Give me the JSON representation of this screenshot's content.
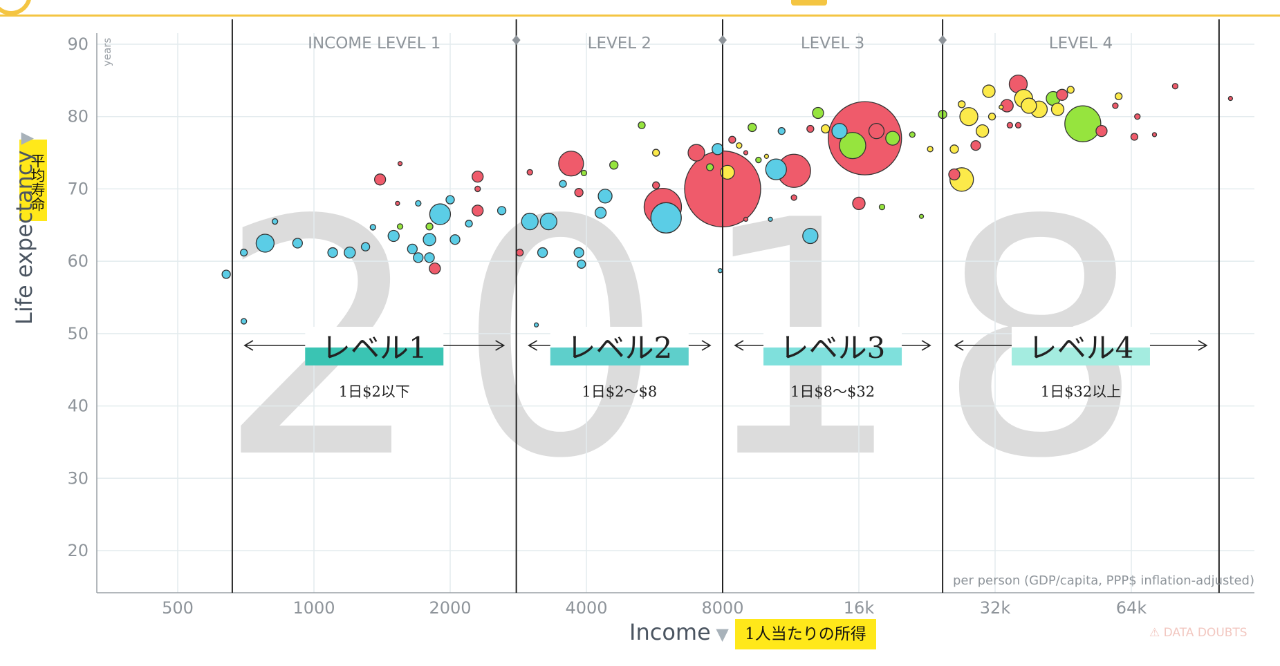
{
  "chart_data": {
    "type": "scatter",
    "year": "2018",
    "xlabel": "Income",
    "xlabel_jp": "1人当たりの所得",
    "ylabel": "Life expectancy",
    "ylabel_jp": "平均寿命",
    "y_unit": "years",
    "x_note": "per person (GDP/capita, PPP$ inflation-adjusted)",
    "xscale": "log2",
    "xlim": [
      350,
      110000
    ],
    "ylim": [
      15,
      92
    ],
    "x_ticks": [
      {
        "value": 500,
        "label": "500"
      },
      {
        "value": 1000,
        "label": "1000"
      },
      {
        "value": 2000,
        "label": "2000"
      },
      {
        "value": 4000,
        "label": "4000"
      },
      {
        "value": 8000,
        "label": "8000"
      },
      {
        "value": 16000,
        "label": "16k"
      },
      {
        "value": 32000,
        "label": "32k"
      },
      {
        "value": 64000,
        "label": "64k"
      }
    ],
    "y_ticks": [
      20,
      30,
      40,
      50,
      60,
      70,
      80,
      90
    ],
    "grid": true,
    "colors": {
      "red": "#ef5b6b",
      "blue": "#5bcde6",
      "green": "#96e43e",
      "yellow": "#fcea4a"
    },
    "level_boundaries": [
      660,
      2800,
      8000,
      24500,
      100000
    ],
    "levels": [
      {
        "header": "INCOME LEVEL 1",
        "jp": "レベル1",
        "sub": "1日$2以下",
        "color": "#3ac4b3",
        "from": 660,
        "to": 2800
      },
      {
        "header": "LEVEL 2",
        "jp": "レベル2",
        "sub": "1日$2〜$8",
        "color": "#5ecfcb",
        "from": 2800,
        "to": 8000
      },
      {
        "header": "LEVEL 3",
        "jp": "レベル3",
        "sub": "1日$8〜$32",
        "color": "#7fe0dc",
        "from": 8000,
        "to": 24500
      },
      {
        "header": "LEVEL 4",
        "jp": "レベル4",
        "sub": "1日$32以上",
        "color": "#a4ece0",
        "from": 24500,
        "to": 100000
      }
    ],
    "bubbles": [
      {
        "x": 8000,
        "y": 70,
        "r": 55,
        "color": "red"
      },
      {
        "x": 16500,
        "y": 77,
        "r": 53,
        "color": "red"
      },
      {
        "x": 5900,
        "y": 67.5,
        "r": 27,
        "color": "red"
      },
      {
        "x": 50000,
        "y": 79,
        "r": 26,
        "color": "green"
      },
      {
        "x": 6000,
        "y": 66,
        "r": 22,
        "color": "blue"
      },
      {
        "x": 11500,
        "y": 72.5,
        "r": 24,
        "color": "red"
      },
      {
        "x": 15500,
        "y": 76,
        "r": 19,
        "color": "green"
      },
      {
        "x": 3700,
        "y": 73.5,
        "r": 18,
        "color": "red"
      },
      {
        "x": 27000,
        "y": 71.3,
        "r": 17,
        "color": "yellow"
      },
      {
        "x": 1900,
        "y": 66.5,
        "r": 15,
        "color": "blue"
      },
      {
        "x": 780,
        "y": 62.5,
        "r": 13,
        "color": "blue"
      },
      {
        "x": 10500,
        "y": 72.7,
        "r": 15,
        "color": "blue"
      },
      {
        "x": 28000,
        "y": 80,
        "r": 13,
        "color": "yellow"
      },
      {
        "x": 36000,
        "y": 84.5,
        "r": 13,
        "color": "red"
      },
      {
        "x": 37000,
        "y": 82.5,
        "r": 13,
        "color": "yellow"
      },
      {
        "x": 31000,
        "y": 83.5,
        "r": 9,
        "color": "yellow"
      },
      {
        "x": 38000,
        "y": 81.5,
        "r": 11,
        "color": "yellow"
      },
      {
        "x": 34000,
        "y": 81.5,
        "r": 9,
        "color": "red"
      },
      {
        "x": 3300,
        "y": 65.5,
        "r": 12,
        "color": "blue"
      },
      {
        "x": 3000,
        "y": 65.5,
        "r": 12,
        "color": "blue"
      },
      {
        "x": 12500,
        "y": 63.5,
        "r": 11,
        "color": "blue"
      },
      {
        "x": 14500,
        "y": 78,
        "r": 11,
        "color": "blue"
      },
      {
        "x": 17500,
        "y": 78,
        "r": 11,
        "color": "red"
      },
      {
        "x": 8200,
        "y": 72.3,
        "r": 10,
        "color": "yellow"
      },
      {
        "x": 19000,
        "y": 77,
        "r": 10,
        "color": "green"
      },
      {
        "x": 4400,
        "y": 69,
        "r": 10,
        "color": "blue"
      },
      {
        "x": 4300,
        "y": 66.7,
        "r": 8,
        "color": "blue"
      },
      {
        "x": 7000,
        "y": 75,
        "r": 12,
        "color": "red"
      },
      {
        "x": 7800,
        "y": 75.5,
        "r": 8,
        "color": "blue"
      },
      {
        "x": 16000,
        "y": 68,
        "r": 9,
        "color": "red"
      },
      {
        "x": 26000,
        "y": 72,
        "r": 8,
        "color": "red"
      },
      {
        "x": 40000,
        "y": 81,
        "r": 12,
        "color": "yellow"
      },
      {
        "x": 43000,
        "y": 82.5,
        "r": 10,
        "color": "green"
      },
      {
        "x": 44000,
        "y": 81,
        "r": 9,
        "color": "yellow"
      },
      {
        "x": 45000,
        "y": 83,
        "r": 8,
        "color": "red"
      },
      {
        "x": 30000,
        "y": 78,
        "r": 9,
        "color": "yellow"
      },
      {
        "x": 29000,
        "y": 76,
        "r": 7,
        "color": "red"
      },
      {
        "x": 55000,
        "y": 78,
        "r": 8,
        "color": "red"
      },
      {
        "x": 1650,
        "y": 61.7,
        "r": 7,
        "color": "blue"
      },
      {
        "x": 1700,
        "y": 60.5,
        "r": 7,
        "color": "blue"
      },
      {
        "x": 1800,
        "y": 63,
        "r": 9,
        "color": "blue"
      },
      {
        "x": 1800,
        "y": 60.5,
        "r": 7,
        "color": "blue"
      },
      {
        "x": 1850,
        "y": 59,
        "r": 8,
        "color": "red"
      },
      {
        "x": 2050,
        "y": 63,
        "r": 7,
        "color": "blue"
      },
      {
        "x": 2300,
        "y": 71.7,
        "r": 8,
        "color": "red"
      },
      {
        "x": 2300,
        "y": 67,
        "r": 8,
        "color": "red"
      },
      {
        "x": 2600,
        "y": 67,
        "r": 6,
        "color": "blue"
      },
      {
        "x": 2000,
        "y": 68.5,
        "r": 6,
        "color": "blue"
      },
      {
        "x": 1500,
        "y": 63.5,
        "r": 8,
        "color": "blue"
      },
      {
        "x": 1400,
        "y": 71.3,
        "r": 8,
        "color": "red"
      },
      {
        "x": 1300,
        "y": 62,
        "r": 6,
        "color": "blue"
      },
      {
        "x": 1200,
        "y": 61.2,
        "r": 8,
        "color": "blue"
      },
      {
        "x": 1100,
        "y": 61.2,
        "r": 7,
        "color": "blue"
      },
      {
        "x": 920,
        "y": 62.5,
        "r": 7,
        "color": "blue"
      },
      {
        "x": 640,
        "y": 58.2,
        "r": 6,
        "color": "blue"
      },
      {
        "x": 700,
        "y": 61.2,
        "r": 5,
        "color": "blue"
      },
      {
        "x": 3200,
        "y": 61.2,
        "r": 7,
        "color": "blue"
      },
      {
        "x": 3850,
        "y": 61.2,
        "r": 7,
        "color": "blue"
      },
      {
        "x": 3900,
        "y": 59.6,
        "r": 6,
        "color": "blue"
      },
      {
        "x": 2850,
        "y": 61.2,
        "r": 5,
        "color": "red"
      },
      {
        "x": 3850,
        "y": 69.5,
        "r": 6,
        "color": "red"
      },
      {
        "x": 5700,
        "y": 70.5,
        "r": 5,
        "color": "red"
      },
      {
        "x": 5700,
        "y": 75,
        "r": 5,
        "color": "yellow"
      },
      {
        "x": 7500,
        "y": 73,
        "r": 5,
        "color": "green"
      },
      {
        "x": 9300,
        "y": 78.5,
        "r": 6,
        "color": "green"
      },
      {
        "x": 13000,
        "y": 80.5,
        "r": 8,
        "color": "green"
      },
      {
        "x": 13500,
        "y": 78.3,
        "r": 6,
        "color": "yellow"
      },
      {
        "x": 12500,
        "y": 78.3,
        "r": 5,
        "color": "red"
      },
      {
        "x": 10800,
        "y": 78,
        "r": 5,
        "color": "blue"
      },
      {
        "x": 21000,
        "y": 77.5,
        "r": 4,
        "color": "green"
      },
      {
        "x": 24500,
        "y": 80.3,
        "r": 6,
        "color": "green"
      },
      {
        "x": 26000,
        "y": 75.5,
        "r": 6,
        "color": "yellow"
      },
      {
        "x": 31500,
        "y": 80,
        "r": 5,
        "color": "yellow"
      },
      {
        "x": 34500,
        "y": 78.8,
        "r": 4,
        "color": "red"
      },
      {
        "x": 47000,
        "y": 83.7,
        "r": 5,
        "color": "yellow"
      },
      {
        "x": 60000,
        "y": 82.8,
        "r": 5,
        "color": "yellow"
      },
      {
        "x": 80000,
        "y": 84.2,
        "r": 4,
        "color": "red"
      },
      {
        "x": 65000,
        "y": 77.2,
        "r": 5,
        "color": "red"
      },
      {
        "x": 8400,
        "y": 76.8,
        "r": 5,
        "color": "red"
      },
      {
        "x": 8700,
        "y": 76,
        "r": 4,
        "color": "yellow"
      },
      {
        "x": 5300,
        "y": 78.8,
        "r": 5,
        "color": "green"
      },
      {
        "x": 3550,
        "y": 70.7,
        "r": 5,
        "color": "blue"
      },
      {
        "x": 3000,
        "y": 72.3,
        "r": 4,
        "color": "red"
      },
      {
        "x": 1550,
        "y": 64.8,
        "r": 4,
        "color": "green"
      },
      {
        "x": 1800,
        "y": 64.8,
        "r": 5,
        "color": "green"
      },
      {
        "x": 1350,
        "y": 64.7,
        "r": 4,
        "color": "blue"
      },
      {
        "x": 1700,
        "y": 68,
        "r": 4,
        "color": "blue"
      },
      {
        "x": 2200,
        "y": 65.2,
        "r": 5,
        "color": "blue"
      },
      {
        "x": 2300,
        "y": 70,
        "r": 4,
        "color": "red"
      },
      {
        "x": 3100,
        "y": 51.2,
        "r": 3,
        "color": "blue"
      },
      {
        "x": 700,
        "y": 51.7,
        "r": 4,
        "color": "blue"
      },
      {
        "x": 820,
        "y": 65.5,
        "r": 4,
        "color": "blue"
      },
      {
        "x": 1550,
        "y": 73.5,
        "r": 3,
        "color": "red"
      },
      {
        "x": 1530,
        "y": 68,
        "r": 3,
        "color": "red"
      },
      {
        "x": 7900,
        "y": 58.7,
        "r": 3,
        "color": "blue"
      },
      {
        "x": 10200,
        "y": 65.8,
        "r": 3,
        "color": "blue"
      },
      {
        "x": 11500,
        "y": 68.8,
        "r": 4,
        "color": "red"
      },
      {
        "x": 18000,
        "y": 67.5,
        "r": 4,
        "color": "green"
      },
      {
        "x": 22000,
        "y": 66.2,
        "r": 3,
        "color": "green"
      },
      {
        "x": 23000,
        "y": 75.5,
        "r": 4,
        "color": "yellow"
      },
      {
        "x": 27000,
        "y": 81.7,
        "r": 5,
        "color": "yellow"
      },
      {
        "x": 33000,
        "y": 81.3,
        "r": 3,
        "color": "yellow"
      },
      {
        "x": 36000,
        "y": 78.8,
        "r": 4,
        "color": "red"
      },
      {
        "x": 59000,
        "y": 81.5,
        "r": 4,
        "color": "red"
      },
      {
        "x": 66000,
        "y": 80,
        "r": 4,
        "color": "red"
      },
      {
        "x": 72000,
        "y": 77.5,
        "r": 3,
        "color": "red"
      },
      {
        "x": 106000,
        "y": 82.5,
        "r": 3,
        "color": "red"
      },
      {
        "x": 9000,
        "y": 75,
        "r": 3,
        "color": "red"
      },
      {
        "x": 9600,
        "y": 74,
        "r": 4,
        "color": "green"
      },
      {
        "x": 10000,
        "y": 74.5,
        "r": 3,
        "color": "yellow"
      },
      {
        "x": 9000,
        "y": 65.8,
        "r": 3,
        "color": "red"
      },
      {
        "x": 4600,
        "y": 73.3,
        "r": 6,
        "color": "green"
      },
      {
        "x": 3950,
        "y": 72.2,
        "r": 4,
        "color": "green"
      }
    ]
  }
}
